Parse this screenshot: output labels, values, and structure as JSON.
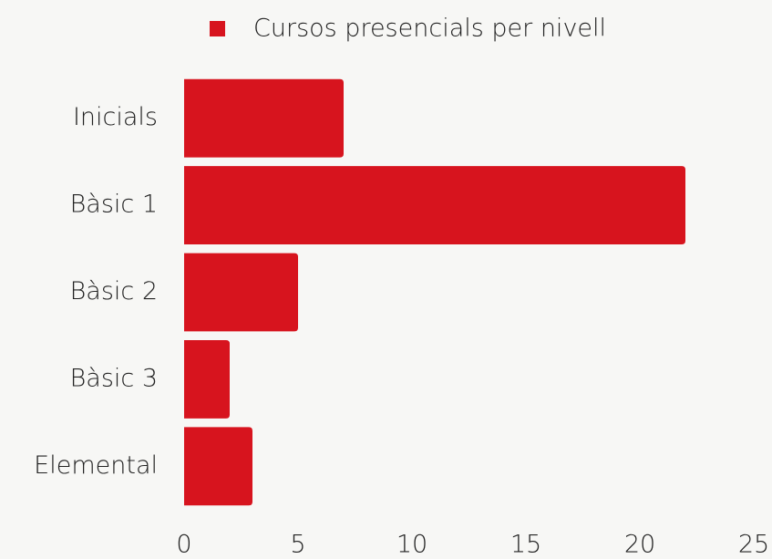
{
  "chart_data": {
    "type": "bar",
    "orientation": "horizontal",
    "categories": [
      "Inicials",
      "Bàsic 1",
      "Bàsic 2",
      "Bàsic 3",
      "Elemental"
    ],
    "series": [
      {
        "name": "Cursos presencials per nivell",
        "color": "#d7141e",
        "values": [
          7,
          22,
          5,
          2,
          3
        ]
      }
    ],
    "xlim": [
      0,
      25
    ],
    "xticks": [
      0,
      5,
      10,
      15,
      20,
      25
    ],
    "grid": false,
    "legend": "top"
  }
}
